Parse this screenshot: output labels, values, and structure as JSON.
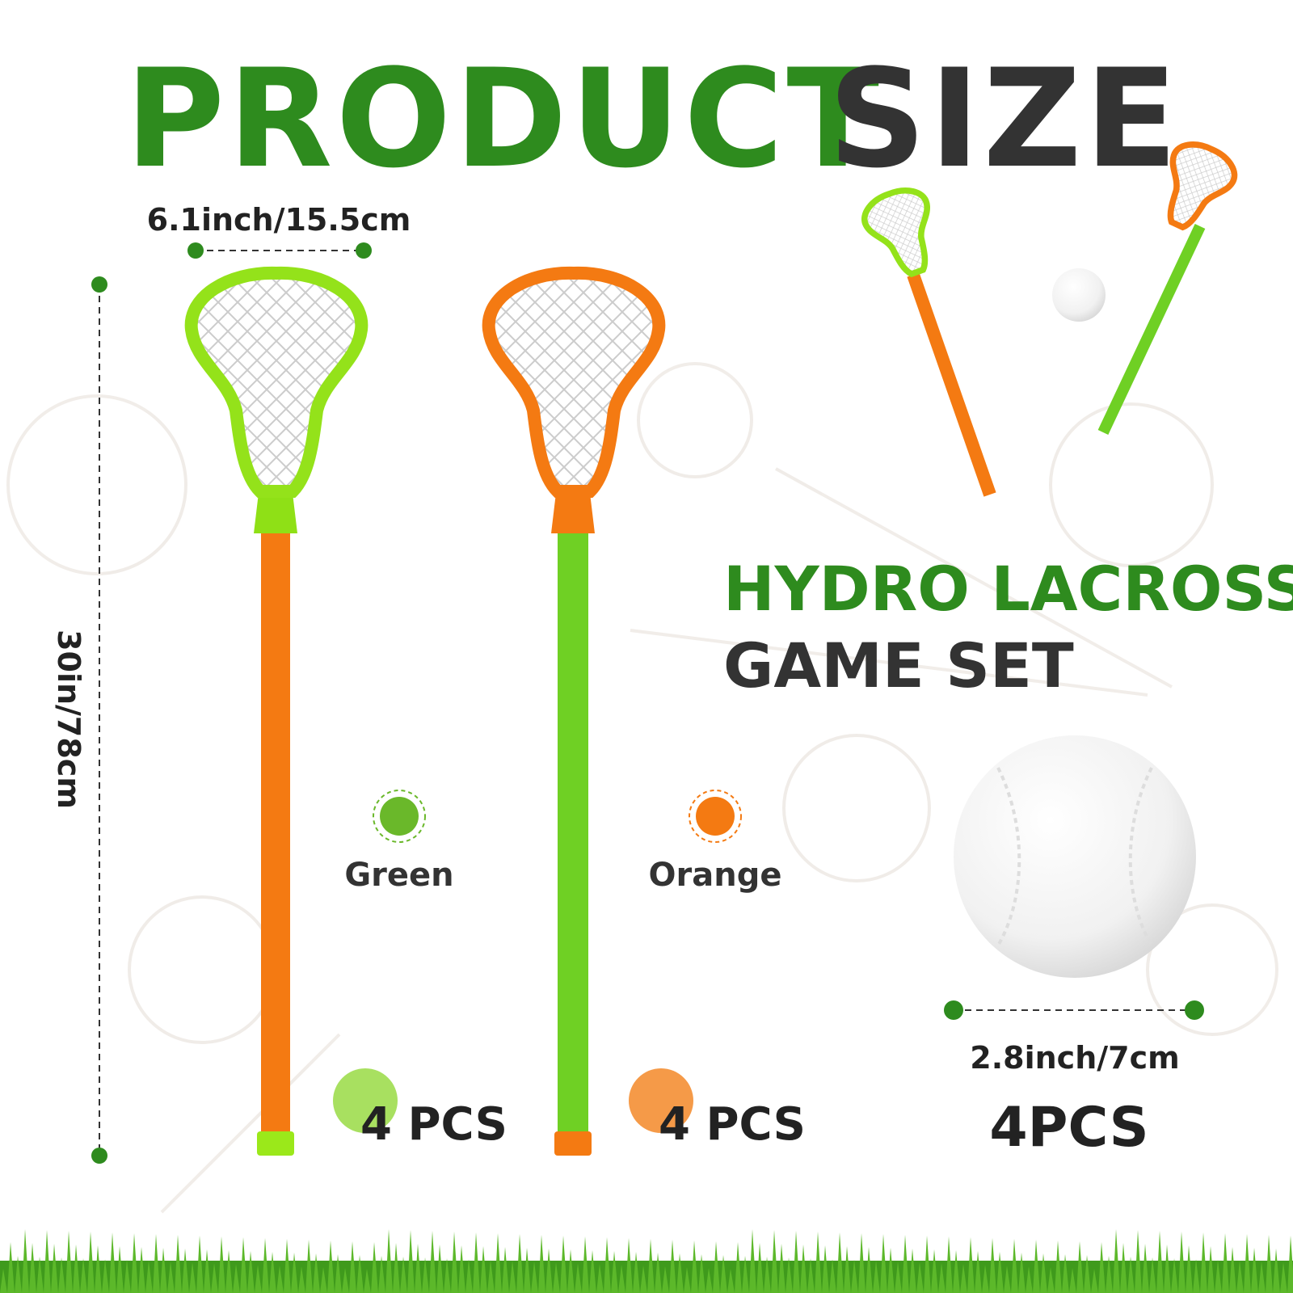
{
  "title": {
    "first": "PRODUCT",
    "second": "SIZE"
  },
  "dimensions": {
    "head_width": "6.1inch/15.5cm",
    "stick_length": "30in/78cm",
    "ball_diameter": "2.8inch/7cm"
  },
  "subtitle": {
    "line1": "HYDRO LACROSSE",
    "line2": "GAME SET"
  },
  "colors": [
    {
      "label": "Green",
      "quantity": "4 PCS"
    },
    {
      "label": "Orange",
      "quantity": "4 PCS"
    }
  ],
  "ball": {
    "quantity": "4PCS"
  }
}
